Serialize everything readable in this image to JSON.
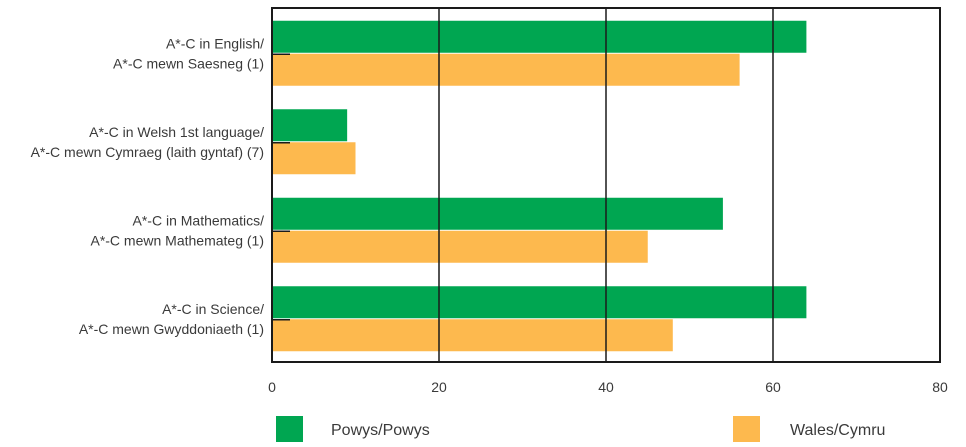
{
  "chart_data": {
    "type": "bar",
    "orientation": "horizontal",
    "categories": [
      [
        "A*-C in English/",
        "A*-C mewn Saesneg (1)"
      ],
      [
        "A*-C in Welsh 1st language/",
        "A*-C mewn Cymraeg (laith gyntaf) (7)"
      ],
      [
        "A*-C in Mathematics/",
        "A*-C mewn Mathemateg (1)"
      ],
      [
        "A*-C in Science/",
        "A*-C mewn Gwyddoniaeth (1)"
      ]
    ],
    "series": [
      {
        "name": "Powys/Powys",
        "values": [
          64,
          9,
          54,
          64
        ]
      },
      {
        "name": "Wales/Cymru",
        "values": [
          56,
          10,
          45,
          48
        ]
      }
    ],
    "xlim": [
      0,
      80
    ],
    "xticks": [
      0,
      20,
      40,
      60,
      80
    ],
    "grid": "vertical",
    "legend_position": "bottom"
  },
  "colors": {
    "series": [
      "#00a651",
      "#fdb94e"
    ],
    "axis": "#1a1a1a",
    "text": "#3a3a3a"
  }
}
